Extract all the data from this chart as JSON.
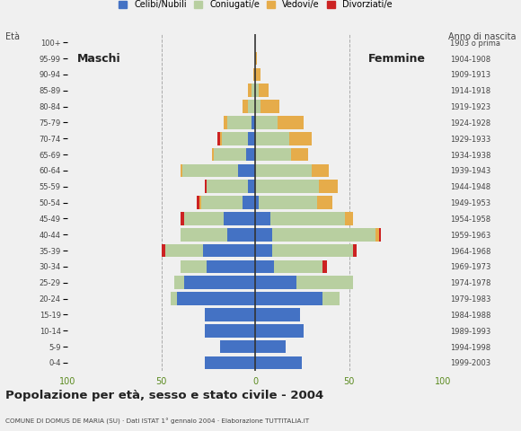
{
  "title": "Popolazione per età, sesso e stato civile - 2004",
  "subtitle": "COMUNE DI DOMUS DE MARIA (SU) · Dati ISTAT 1° gennaio 2004 · Elaborazione TUTTITALIA.IT",
  "ylabel_left": "Età",
  "ylabel_right": "Anno di nascita",
  "label_maschi": "Maschi",
  "label_femmine": "Femmine",
  "age_groups": [
    "0-4",
    "5-9",
    "10-14",
    "15-19",
    "20-24",
    "25-29",
    "30-34",
    "35-39",
    "40-44",
    "45-49",
    "50-54",
    "55-59",
    "60-64",
    "65-69",
    "70-74",
    "75-79",
    "80-84",
    "85-89",
    "90-94",
    "95-99",
    "100+"
  ],
  "birth_years": [
    "1999-2003",
    "1994-1998",
    "1989-1993",
    "1984-1988",
    "1979-1983",
    "1974-1978",
    "1969-1973",
    "1964-1968",
    "1959-1963",
    "1954-1958",
    "1949-1953",
    "1944-1948",
    "1939-1943",
    "1934-1938",
    "1929-1933",
    "1924-1928",
    "1919-1923",
    "1914-1918",
    "1909-1913",
    "1904-1908",
    "1903 o prima"
  ],
  "colors": {
    "celibe": "#4472c4",
    "coniugato": "#b8cfa0",
    "vedovo": "#e6ac4a",
    "divorziato": "#cc2222"
  },
  "legend_labels": [
    "Celibi/Nubili",
    "Coniugati/e",
    "Vedovi/e",
    "Divorziati/e"
  ],
  "bg_color": "#f0f0f0",
  "xlim": 100,
  "maschi": {
    "celibe": [
      27,
      19,
      27,
      27,
      42,
      38,
      26,
      28,
      15,
      17,
      7,
      4,
      9,
      5,
      4,
      2,
      0,
      0,
      0,
      0,
      0
    ],
    "coniugato": [
      0,
      0,
      0,
      0,
      3,
      5,
      14,
      20,
      25,
      21,
      22,
      22,
      30,
      17,
      14,
      13,
      4,
      2,
      0,
      0,
      0
    ],
    "vedovo": [
      0,
      0,
      0,
      0,
      0,
      0,
      0,
      0,
      0,
      0,
      1,
      0,
      1,
      1,
      1,
      2,
      3,
      2,
      1,
      0,
      0
    ],
    "divorziato": [
      0,
      0,
      0,
      0,
      0,
      0,
      0,
      2,
      0,
      2,
      1,
      1,
      0,
      0,
      1,
      0,
      0,
      0,
      0,
      0,
      0
    ]
  },
  "femmine": {
    "celibe": [
      25,
      16,
      26,
      24,
      36,
      22,
      10,
      9,
      9,
      8,
      2,
      0,
      0,
      0,
      0,
      0,
      0,
      0,
      0,
      0,
      0
    ],
    "coniugato": [
      0,
      0,
      0,
      0,
      9,
      30,
      26,
      43,
      55,
      40,
      31,
      34,
      30,
      19,
      18,
      12,
      3,
      2,
      0,
      0,
      0
    ],
    "vedovo": [
      0,
      0,
      0,
      0,
      0,
      0,
      0,
      0,
      2,
      4,
      8,
      10,
      9,
      9,
      12,
      14,
      10,
      5,
      3,
      1,
      0
    ],
    "divorziato": [
      0,
      0,
      0,
      0,
      0,
      0,
      2,
      2,
      1,
      0,
      0,
      0,
      0,
      0,
      0,
      0,
      0,
      0,
      0,
      0,
      0
    ]
  }
}
